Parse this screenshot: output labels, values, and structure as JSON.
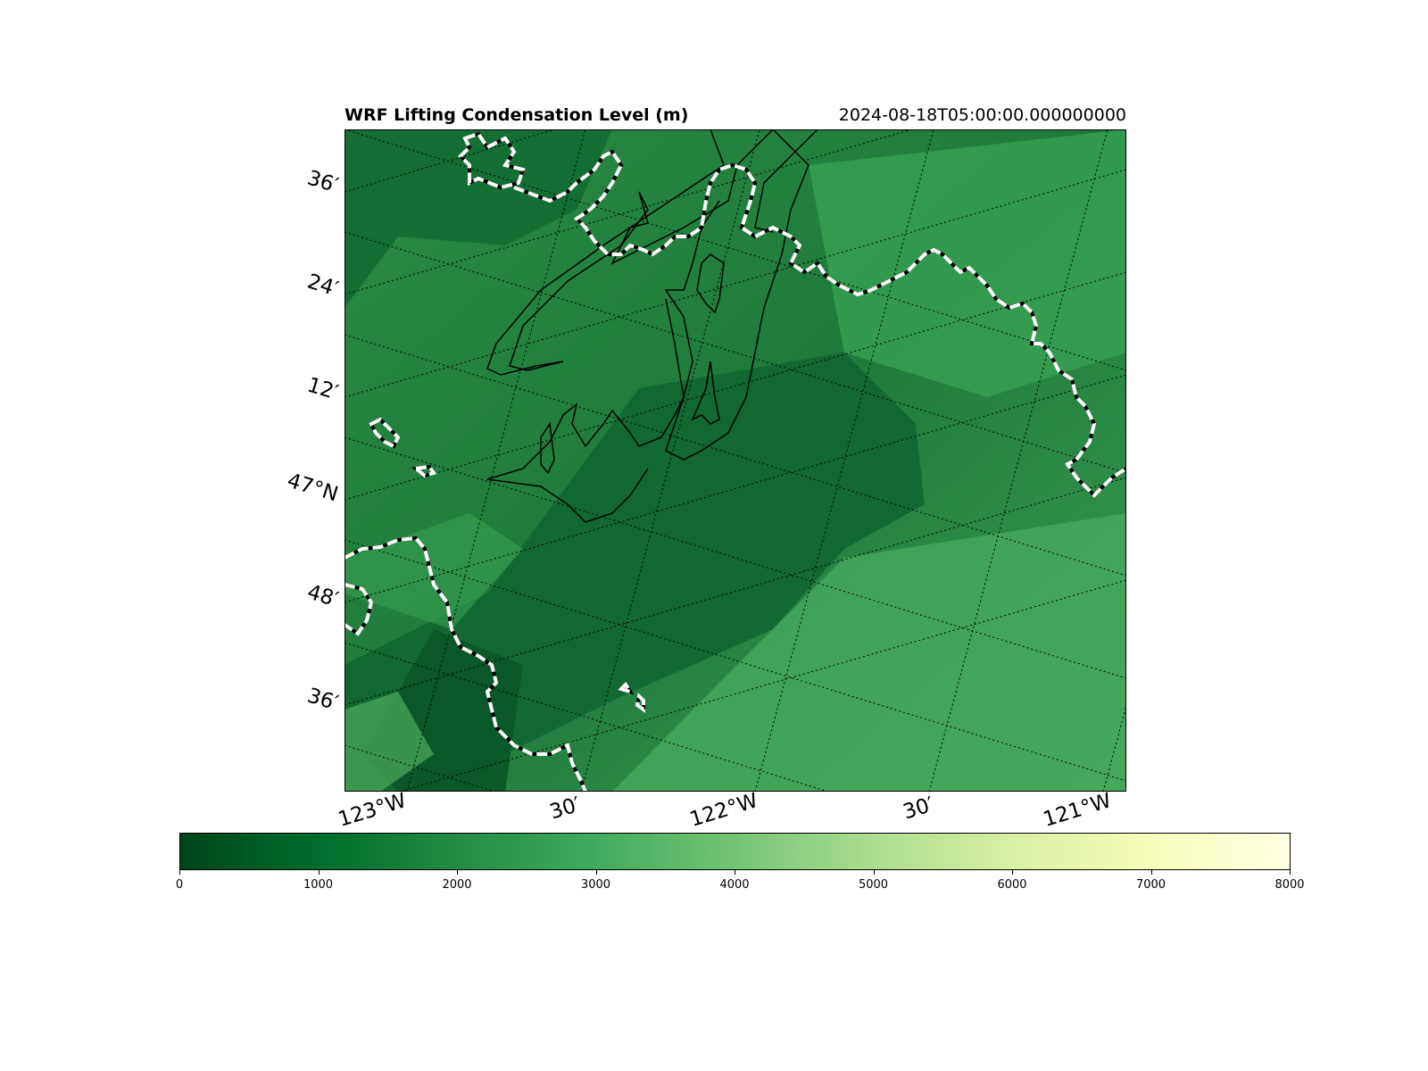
{
  "title": {
    "left": "WRF Lifting Condensation Level (m)",
    "right": "2024-08-18T05:00:00.000000000"
  },
  "map": {
    "lat_labels": [
      "36′",
      "24′",
      "12′",
      "47°N",
      "48′",
      "36′"
    ],
    "lon_labels": [
      "123°W",
      "30′",
      "122°W",
      "30′",
      "121°W"
    ],
    "overlays": [
      "coastline-dashed",
      "lcl-contour",
      "graticule-dotted"
    ]
  },
  "colorbar": {
    "colormap": "greens (dark to light yellow)",
    "colors": [
      "#00441b",
      "#006d2c",
      "#238b45",
      "#41ab5d",
      "#74c476",
      "#addd8e",
      "#d9f0a3",
      "#f7fcb9",
      "#ffffe5"
    ],
    "range": [
      0,
      8000
    ],
    "ticks": [
      "0",
      "1000",
      "2000",
      "3000",
      "4000",
      "5000",
      "6000",
      "7000",
      "8000"
    ]
  },
  "colors": {
    "field_dark": "#0b5a2c",
    "field_mid": "#2e8b48",
    "field_light": "#4aa85e",
    "coast_dash": "#ffffff",
    "contour": "#000000"
  }
}
